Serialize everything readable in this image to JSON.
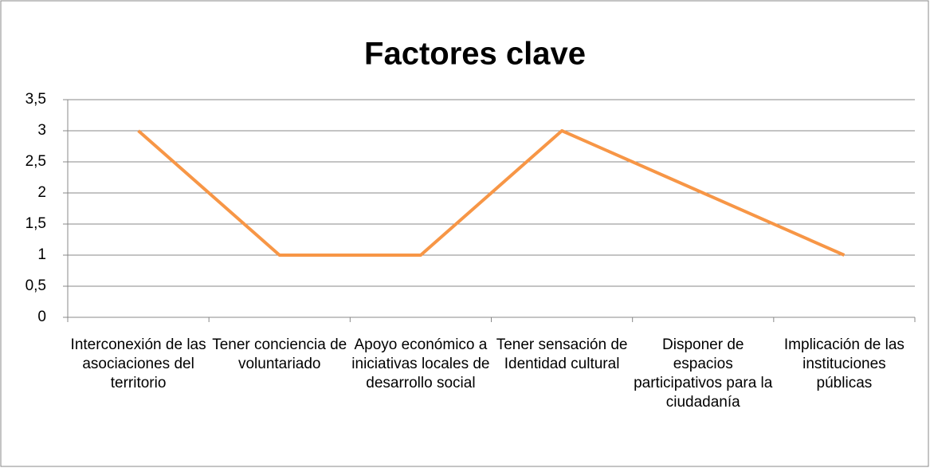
{
  "chart_data": {
    "type": "line",
    "title": "Factores clave",
    "categories": [
      "Interconexión de las asociaciones del territorio",
      "Tener conciencia de voluntariado",
      "Apoyo económico a iniciativas locales de desarrollo social",
      "Tener sensación de Identidad cultural",
      "Disponer de espacios participativos para la ciudadanía",
      "Implicación de las instituciones públicas"
    ],
    "values": [
      3,
      1,
      1,
      3,
      2,
      1
    ],
    "color": "#f79646",
    "ylim": [
      0,
      3.5
    ],
    "yticks": [
      0,
      {
        "value": 0.5,
        "label": "0,5"
      },
      1,
      {
        "value": 1.5,
        "label": "1,5"
      },
      2,
      {
        "value": 2.5,
        "label": "2,5"
      },
      3,
      {
        "value": 3.5,
        "label": "3,5"
      }
    ],
    "grid": true
  }
}
